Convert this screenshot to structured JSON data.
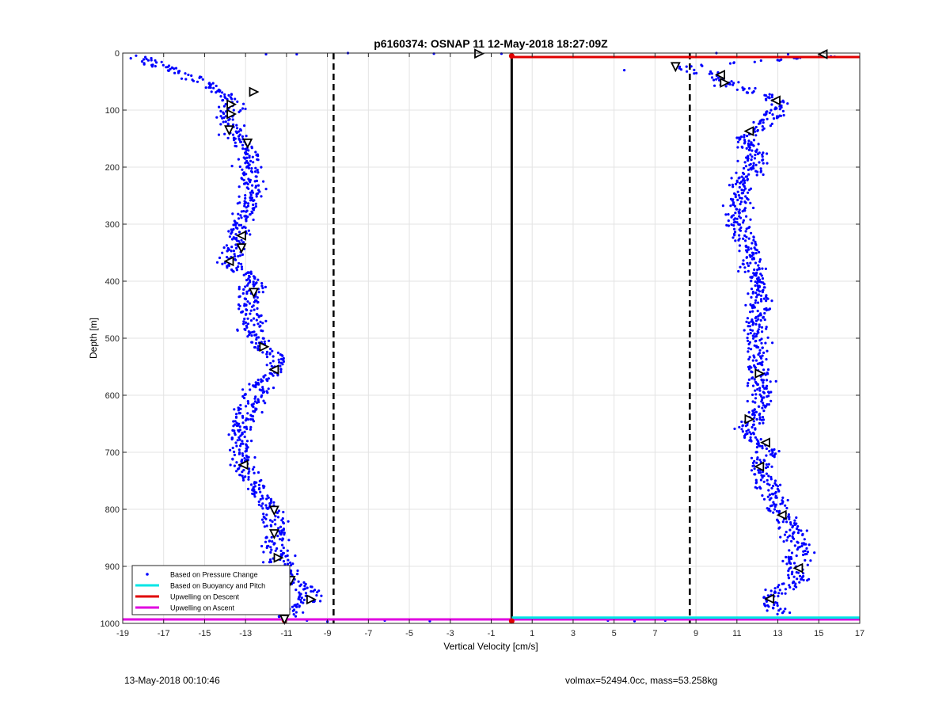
{
  "chart_data": {
    "type": "scatter",
    "title": "p6160374: OSNAP 11 12-May-2018 18:27:09Z",
    "xlabel": "Vertical Velocity [cm/s]",
    "ylabel": "Depth [m]",
    "xlim": [
      -19,
      17
    ],
    "ylim": [
      0,
      1000
    ],
    "y_reversed": true,
    "grid": true,
    "x_ticks": [
      -19,
      -17,
      -15,
      -13,
      -11,
      -9,
      -7,
      -5,
      -3,
      -1,
      1,
      3,
      5,
      7,
      9,
      11,
      13,
      15,
      17
    ],
    "y_ticks": [
      0,
      100,
      200,
      300,
      400,
      500,
      600,
      700,
      800,
      900,
      1000
    ],
    "legend_position": "bottom-left",
    "legend": [
      {
        "label": "Based on Pressure Change",
        "color": "#0000ff",
        "marker": "dot"
      },
      {
        "label": "Based on Buoyancy and Pitch",
        "color": "#00e5e5",
        "marker": "line"
      },
      {
        "label": "Upwelling on Descent",
        "color": "#e00000",
        "marker": "line"
      },
      {
        "label": "Upwelling on Ascent",
        "color": "#e000e0",
        "marker": "line"
      }
    ],
    "series": [
      {
        "name": "Based on Pressure Change",
        "color": "#0000ff",
        "descent_profile": [
          {
            "depth": 5,
            "velocity": -18.5
          },
          {
            "depth": 20,
            "velocity": -17.5
          },
          {
            "depth": 30,
            "velocity": -16.5
          },
          {
            "depth": 45,
            "velocity": -15.5
          },
          {
            "depth": 60,
            "velocity": -14.5
          },
          {
            "depth": 75,
            "velocity": -13.8
          },
          {
            "depth": 90,
            "velocity": -13.5
          },
          {
            "depth": 100,
            "velocity": -13.7
          },
          {
            "depth": 110,
            "velocity": -13.9
          },
          {
            "depth": 125,
            "velocity": -13.9
          },
          {
            "depth": 140,
            "velocity": -13.6
          },
          {
            "depth": 155,
            "velocity": -13.2
          },
          {
            "depth": 170,
            "velocity": -12.9
          },
          {
            "depth": 200,
            "velocity": -12.8
          },
          {
            "depth": 230,
            "velocity": -12.8
          },
          {
            "depth": 260,
            "velocity": -12.9
          },
          {
            "depth": 290,
            "velocity": -13.0
          },
          {
            "depth": 320,
            "velocity": -13.3
          },
          {
            "depth": 345,
            "velocity": -13.5
          },
          {
            "depth": 365,
            "velocity": -14.0
          },
          {
            "depth": 385,
            "velocity": -13.0
          },
          {
            "depth": 410,
            "velocity": -12.6
          },
          {
            "depth": 430,
            "velocity": -12.9
          },
          {
            "depth": 460,
            "velocity": -12.8
          },
          {
            "depth": 490,
            "velocity": -12.5
          },
          {
            "depth": 515,
            "velocity": -12.2
          },
          {
            "depth": 535,
            "velocity": -11.4
          },
          {
            "depth": 555,
            "velocity": -11.6
          },
          {
            "depth": 580,
            "velocity": -12.2
          },
          {
            "depth": 610,
            "velocity": -12.8
          },
          {
            "depth": 640,
            "velocity": -13.0
          },
          {
            "depth": 665,
            "velocity": -13.4
          },
          {
            "depth": 700,
            "velocity": -13.3
          },
          {
            "depth": 725,
            "velocity": -13.1
          },
          {
            "depth": 750,
            "velocity": -12.7
          },
          {
            "depth": 780,
            "velocity": -12.1
          },
          {
            "depth": 805,
            "velocity": -11.7
          },
          {
            "depth": 830,
            "velocity": -11.6
          },
          {
            "depth": 845,
            "velocity": -11.7
          },
          {
            "depth": 870,
            "velocity": -11.4
          },
          {
            "depth": 890,
            "velocity": -11.4
          },
          {
            "depth": 910,
            "velocity": -11.0
          },
          {
            "depth": 925,
            "velocity": -10.8
          },
          {
            "depth": 940,
            "velocity": -10.0
          },
          {
            "depth": 960,
            "velocity": -10.0
          },
          {
            "depth": 975,
            "velocity": -11.0
          },
          {
            "depth": 990,
            "velocity": -11.0
          }
        ],
        "ascent_profile": [
          {
            "depth": 5,
            "velocity": 15.5
          },
          {
            "depth": 25,
            "velocity": 8.0
          },
          {
            "depth": 40,
            "velocity": 10.2
          },
          {
            "depth": 55,
            "velocity": 10.5
          },
          {
            "depth": 70,
            "velocity": 12.0
          },
          {
            "depth": 85,
            "velocity": 13.0
          },
          {
            "depth": 100,
            "velocity": 13.0
          },
          {
            "depth": 115,
            "velocity": 12.8
          },
          {
            "depth": 130,
            "velocity": 12.2
          },
          {
            "depth": 140,
            "velocity": 11.6
          },
          {
            "depth": 160,
            "velocity": 11.2
          },
          {
            "depth": 180,
            "velocity": 12.0
          },
          {
            "depth": 200,
            "velocity": 11.7
          },
          {
            "depth": 230,
            "velocity": 11.3
          },
          {
            "depth": 260,
            "velocity": 11.0
          },
          {
            "depth": 290,
            "velocity": 11.0
          },
          {
            "depth": 320,
            "velocity": 11.3
          },
          {
            "depth": 350,
            "velocity": 11.6
          },
          {
            "depth": 380,
            "velocity": 11.8
          },
          {
            "depth": 410,
            "velocity": 12.0
          },
          {
            "depth": 440,
            "velocity": 12.0
          },
          {
            "depth": 470,
            "velocity": 12.0
          },
          {
            "depth": 500,
            "velocity": 12.1
          },
          {
            "depth": 530,
            "velocity": 12.0
          },
          {
            "depth": 565,
            "velocity": 12.1
          },
          {
            "depth": 595,
            "velocity": 12.3
          },
          {
            "depth": 625,
            "velocity": 12.0
          },
          {
            "depth": 645,
            "velocity": 11.7
          },
          {
            "depth": 670,
            "velocity": 11.5
          },
          {
            "depth": 685,
            "velocity": 12.4
          },
          {
            "depth": 705,
            "velocity": 12.4
          },
          {
            "depth": 727,
            "velocity": 12.1
          },
          {
            "depth": 750,
            "velocity": 12.4
          },
          {
            "depth": 785,
            "velocity": 12.8
          },
          {
            "depth": 810,
            "velocity": 13.2
          },
          {
            "depth": 840,
            "velocity": 13.7
          },
          {
            "depth": 870,
            "velocity": 14.0
          },
          {
            "depth": 905,
            "velocity": 14.0
          },
          {
            "depth": 925,
            "velocity": 13.8
          },
          {
            "depth": 958,
            "velocity": 12.6
          },
          {
            "depth": 975,
            "velocity": 12.8
          },
          {
            "depth": 985,
            "velocity": 12.8
          }
        ],
        "surface_outliers": [
          {
            "depth": 2,
            "velocity": -12.0
          },
          {
            "depth": 2,
            "velocity": -10.5
          },
          {
            "depth": 0,
            "velocity": -8.0
          },
          {
            "depth": 1,
            "velocity": -3.8
          },
          {
            "depth": 1,
            "velocity": -0.5
          },
          {
            "depth": 2,
            "velocity": 13.5
          },
          {
            "depth": 0,
            "velocity": 10.0
          },
          {
            "depth": 30,
            "velocity": 5.5
          }
        ],
        "bottom_outliers": [
          {
            "depth": 995,
            "velocity": -10.0
          },
          {
            "depth": 997,
            "velocity": -9.0
          },
          {
            "depth": 995,
            "velocity": -6.2
          },
          {
            "depth": 996,
            "velocity": -4.0
          },
          {
            "depth": 995,
            "velocity": 4.7
          },
          {
            "depth": 996,
            "velocity": 6.0
          },
          {
            "depth": 995,
            "velocity": 7.5
          },
          {
            "depth": 992,
            "velocity": 9.9
          }
        ]
      },
      {
        "name": "Upwelling on Descent",
        "color": "#e00000",
        "segments": [
          {
            "depth": 0,
            "velocity": 0
          },
          {
            "depth": 7,
            "velocity": 0
          },
          {
            "depth": 7,
            "velocity": 17
          }
        ]
      },
      {
        "name": "Upwelling on Ascent",
        "color": "#e000e0",
        "segments": [
          {
            "depth": 993,
            "velocity": -19
          },
          {
            "depth": 993,
            "velocity": 17
          }
        ]
      },
      {
        "name": "Based on Buoyancy and Pitch",
        "color": "#00e5e5",
        "segments": [
          {
            "depth": 990,
            "velocity": 0
          },
          {
            "depth": 990,
            "velocity": 17
          }
        ]
      }
    ],
    "vertical_lines": [
      {
        "velocity": -8.7,
        "style": "dashed",
        "color": "#000000"
      },
      {
        "velocity": 8.7,
        "style": "dashed",
        "color": "#000000"
      },
      {
        "velocity": 0,
        "style": "solid",
        "color": "#000000"
      }
    ],
    "triangle_markers": [
      {
        "depth": 68,
        "velocity": -12.6,
        "dir": "right"
      },
      {
        "depth": 90,
        "velocity": -13.7,
        "dir": "right"
      },
      {
        "depth": 107,
        "velocity": -13.7,
        "dir": "right"
      },
      {
        "depth": 135,
        "velocity": -13.8,
        "dir": "down"
      },
      {
        "depth": 158,
        "velocity": -12.9,
        "dir": "down"
      },
      {
        "depth": 320,
        "velocity": -13.2,
        "dir": "left"
      },
      {
        "depth": 342,
        "velocity": -13.2,
        "dir": "down"
      },
      {
        "depth": 365,
        "velocity": -13.8,
        "dir": "left"
      },
      {
        "depth": 420,
        "velocity": -12.6,
        "dir": "down"
      },
      {
        "depth": 515,
        "velocity": -12.1,
        "dir": "right"
      },
      {
        "depth": 555,
        "velocity": -11.6,
        "dir": "left"
      },
      {
        "depth": 722,
        "velocity": -13.1,
        "dir": "left"
      },
      {
        "depth": 802,
        "velocity": -11.6,
        "dir": "down"
      },
      {
        "depth": 843,
        "velocity": -11.6,
        "dir": "down"
      },
      {
        "depth": 885,
        "velocity": -11.4,
        "dir": "right"
      },
      {
        "depth": 925,
        "velocity": -10.8,
        "dir": "down"
      },
      {
        "depth": 958,
        "velocity": -9.8,
        "dir": "right"
      },
      {
        "depth": 993,
        "velocity": -11.1,
        "dir": "down"
      },
      {
        "depth": 1,
        "velocity": -1.6,
        "dir": "right"
      },
      {
        "depth": 2,
        "velocity": 15.2,
        "dir": "left"
      },
      {
        "depth": 24,
        "velocity": 8.0,
        "dir": "down"
      },
      {
        "depth": 38,
        "velocity": 10.2,
        "dir": "left"
      },
      {
        "depth": 52,
        "velocity": 10.4,
        "dir": "right"
      },
      {
        "depth": 83,
        "velocity": 12.9,
        "dir": "left"
      },
      {
        "depth": 137,
        "velocity": 11.6,
        "dir": "left"
      },
      {
        "depth": 562,
        "velocity": 12.1,
        "dir": "right"
      },
      {
        "depth": 642,
        "velocity": 11.6,
        "dir": "right"
      },
      {
        "depth": 683,
        "velocity": 12.4,
        "dir": "left"
      },
      {
        "depth": 725,
        "velocity": 12.1,
        "dir": "left"
      },
      {
        "depth": 810,
        "velocity": 13.2,
        "dir": "left"
      },
      {
        "depth": 903,
        "velocity": 14.0,
        "dir": "left"
      },
      {
        "depth": 957,
        "velocity": 12.6,
        "dir": "left"
      }
    ],
    "endpoint_markers": [
      {
        "depth": 5,
        "velocity": 0,
        "color": "#e00000"
      },
      {
        "depth": 996,
        "velocity": 0,
        "color": "#e00000"
      },
      {
        "depth": 995,
        "velocity": -11.1,
        "color": "#e00000"
      }
    ]
  },
  "footer": {
    "timestamp": "13-May-2018 00:10:46",
    "params": "volmax=52494.0cc, mass=53.258kg"
  }
}
